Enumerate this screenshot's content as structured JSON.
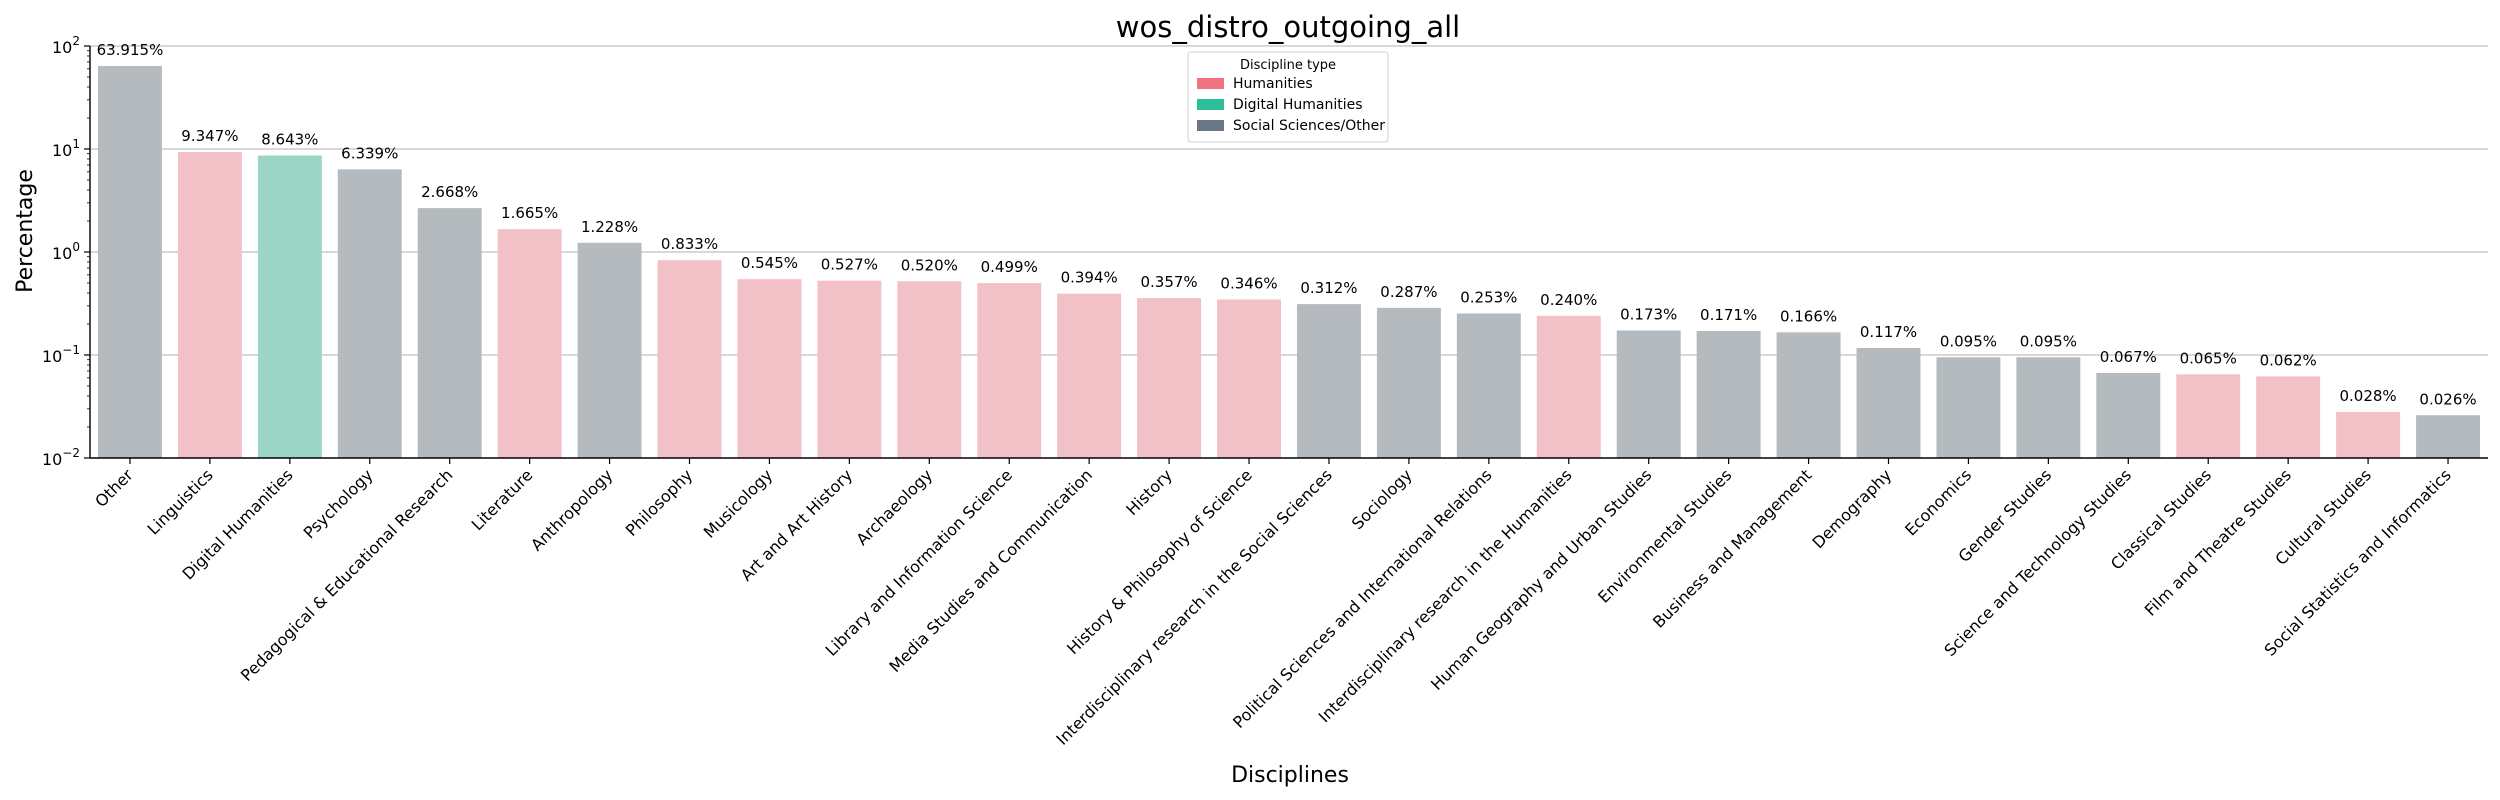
{
  "chart_data": {
    "type": "bar",
    "title": "wos_distro_outgoing_all",
    "xlabel": "Disciplines",
    "ylabel": "Percentage",
    "yscale": "log",
    "ylim": [
      0.01,
      100
    ],
    "y_ticks": [
      {
        "value": 0.01,
        "base": "10",
        "exp": "−2"
      },
      {
        "value": 0.1,
        "base": "10",
        "exp": "−1"
      },
      {
        "value": 1,
        "base": "10",
        "exp": "0"
      },
      {
        "value": 10,
        "base": "10",
        "exp": "1"
      },
      {
        "value": 100,
        "base": "10",
        "exp": "2"
      }
    ],
    "grid": "horizontal",
    "legend": {
      "title": "Discipline type",
      "placement": "top-center",
      "entries": [
        {
          "label": "Humanities",
          "color": "#f0737f"
        },
        {
          "label": "Digital Humanities",
          "color": "#2bbf99"
        },
        {
          "label": "Social Sciences/Other",
          "color": "#6a7788"
        }
      ]
    },
    "bar_colors": {
      "Humanities": "#f2c1c7",
      "Digital Humanities": "#9bd5c5",
      "Social Sciences/Other": "#b5babe"
    },
    "bars": [
      {
        "category": "Other",
        "value": 63.915,
        "label": "63.915%",
        "group": "Social Sciences/Other"
      },
      {
        "category": "Linguistics",
        "value": 9.347,
        "label": "9.347%",
        "group": "Humanities"
      },
      {
        "category": "Digital Humanities",
        "value": 8.643,
        "label": "8.643%",
        "group": "Digital Humanities"
      },
      {
        "category": "Psychology",
        "value": 6.339,
        "label": "6.339%",
        "group": "Social Sciences/Other"
      },
      {
        "category": "Pedagogical & Educational Research",
        "value": 2.668,
        "label": "2.668%",
        "group": "Social Sciences/Other"
      },
      {
        "category": "Literature",
        "value": 1.665,
        "label": "1.665%",
        "group": "Humanities"
      },
      {
        "category": "Anthropology",
        "value": 1.228,
        "label": "1.228%",
        "group": "Social Sciences/Other"
      },
      {
        "category": "Philosophy",
        "value": 0.833,
        "label": "0.833%",
        "group": "Humanities"
      },
      {
        "category": "Musicology",
        "value": 0.545,
        "label": "0.545%",
        "group": "Humanities"
      },
      {
        "category": "Art and Art History",
        "value": 0.527,
        "label": "0.527%",
        "group": "Humanities"
      },
      {
        "category": "Archaeology",
        "value": 0.52,
        "label": "0.520%",
        "group": "Humanities"
      },
      {
        "category": "Library and Information Science",
        "value": 0.499,
        "label": "0.499%",
        "group": "Humanities"
      },
      {
        "category": "Media Studies and Communication",
        "value": 0.394,
        "label": "0.394%",
        "group": "Humanities"
      },
      {
        "category": "History",
        "value": 0.357,
        "label": "0.357%",
        "group": "Humanities"
      },
      {
        "category": "History & Philosophy of Science",
        "value": 0.346,
        "label": "0.346%",
        "group": "Humanities"
      },
      {
        "category": "Interdisciplinary research in the Social Sciences",
        "value": 0.312,
        "label": "0.312%",
        "group": "Social Sciences/Other"
      },
      {
        "category": "Sociology",
        "value": 0.287,
        "label": "0.287%",
        "group": "Social Sciences/Other"
      },
      {
        "category": "Political Sciences and International Relations",
        "value": 0.253,
        "label": "0.253%",
        "group": "Social Sciences/Other"
      },
      {
        "category": "Interdisciplinary research in the Humanities",
        "value": 0.24,
        "label": "0.240%",
        "group": "Humanities"
      },
      {
        "category": "Human Geography and Urban Studies",
        "value": 0.173,
        "label": "0.173%",
        "group": "Social Sciences/Other"
      },
      {
        "category": "Environmental Studies",
        "value": 0.171,
        "label": "0.171%",
        "group": "Social Sciences/Other"
      },
      {
        "category": "Business and Management",
        "value": 0.166,
        "label": "0.166%",
        "group": "Social Sciences/Other"
      },
      {
        "category": "Demography",
        "value": 0.117,
        "label": "0.117%",
        "group": "Social Sciences/Other"
      },
      {
        "category": "Economics",
        "value": 0.095,
        "label": "0.095%",
        "group": "Social Sciences/Other"
      },
      {
        "category": "Gender Studies",
        "value": 0.095,
        "label": "0.095%",
        "group": "Social Sciences/Other"
      },
      {
        "category": "Science and Technology Studies",
        "value": 0.067,
        "label": "0.067%",
        "group": "Social Sciences/Other"
      },
      {
        "category": "Classical Studies",
        "value": 0.065,
        "label": "0.065%",
        "group": "Humanities"
      },
      {
        "category": "Film and Theatre Studies",
        "value": 0.062,
        "label": "0.062%",
        "group": "Humanities"
      },
      {
        "category": "Cultural Studies",
        "value": 0.028,
        "label": "0.028%",
        "group": "Humanities"
      },
      {
        "category": "Social Statistics and Informatics",
        "value": 0.026,
        "label": "0.026%",
        "group": "Social Sciences/Other"
      }
    ]
  }
}
